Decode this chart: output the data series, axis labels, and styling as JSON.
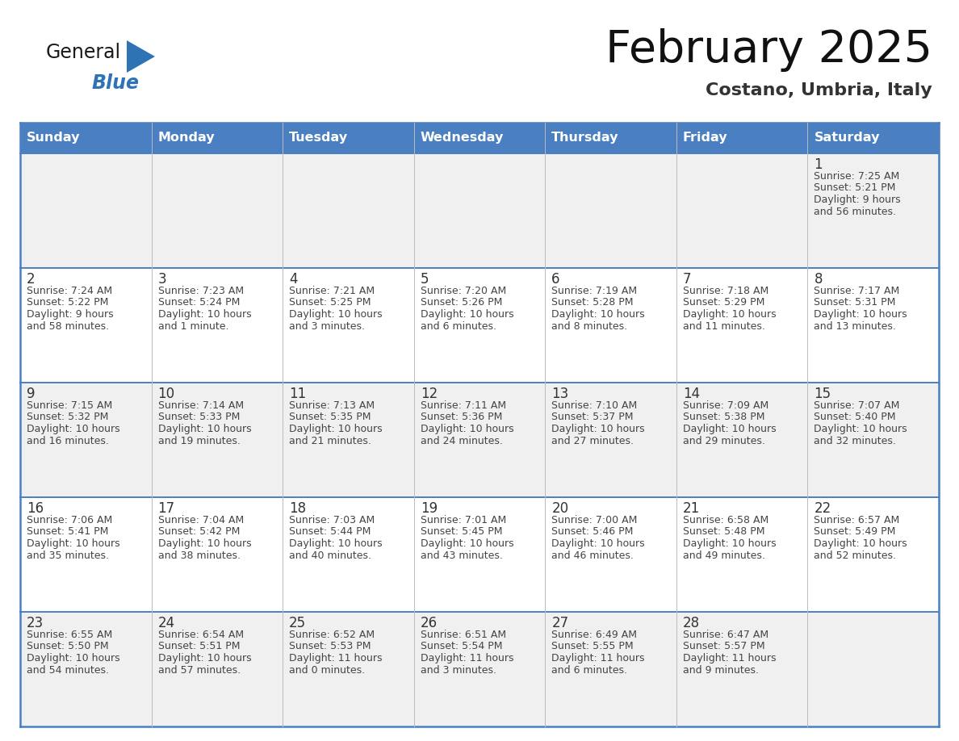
{
  "title": "February 2025",
  "subtitle": "Costano, Umbria, Italy",
  "days_of_week": [
    "Sunday",
    "Monday",
    "Tuesday",
    "Wednesday",
    "Thursday",
    "Friday",
    "Saturday"
  ],
  "header_bg": "#4a7fc1",
  "header_text": "#FFFFFF",
  "row_bg_alt": "#F0F0F0",
  "row_bg_norm": "#FFFFFF",
  "cell_text_color": "#444444",
  "day_number_color": "#333333",
  "border_color": "#4a7fc1",
  "logo_general_color": "#1a1a1a",
  "logo_blue_color": "#2E74B5",
  "calendar_data": [
    [
      null,
      null,
      null,
      null,
      null,
      null,
      {
        "day": "1",
        "sunrise": "7:25 AM",
        "sunset": "5:21 PM",
        "daylight_l1": "9 hours",
        "daylight_l2": "and 56 minutes."
      }
    ],
    [
      {
        "day": "2",
        "sunrise": "7:24 AM",
        "sunset": "5:22 PM",
        "daylight_l1": "9 hours",
        "daylight_l2": "and 58 minutes."
      },
      {
        "day": "3",
        "sunrise": "7:23 AM",
        "sunset": "5:24 PM",
        "daylight_l1": "10 hours",
        "daylight_l2": "and 1 minute."
      },
      {
        "day": "4",
        "sunrise": "7:21 AM",
        "sunset": "5:25 PM",
        "daylight_l1": "10 hours",
        "daylight_l2": "and 3 minutes."
      },
      {
        "day": "5",
        "sunrise": "7:20 AM",
        "sunset": "5:26 PM",
        "daylight_l1": "10 hours",
        "daylight_l2": "and 6 minutes."
      },
      {
        "day": "6",
        "sunrise": "7:19 AM",
        "sunset": "5:28 PM",
        "daylight_l1": "10 hours",
        "daylight_l2": "and 8 minutes."
      },
      {
        "day": "7",
        "sunrise": "7:18 AM",
        "sunset": "5:29 PM",
        "daylight_l1": "10 hours",
        "daylight_l2": "and 11 minutes."
      },
      {
        "day": "8",
        "sunrise": "7:17 AM",
        "sunset": "5:31 PM",
        "daylight_l1": "10 hours",
        "daylight_l2": "and 13 minutes."
      }
    ],
    [
      {
        "day": "9",
        "sunrise": "7:15 AM",
        "sunset": "5:32 PM",
        "daylight_l1": "10 hours",
        "daylight_l2": "and 16 minutes."
      },
      {
        "day": "10",
        "sunrise": "7:14 AM",
        "sunset": "5:33 PM",
        "daylight_l1": "10 hours",
        "daylight_l2": "and 19 minutes."
      },
      {
        "day": "11",
        "sunrise": "7:13 AM",
        "sunset": "5:35 PM",
        "daylight_l1": "10 hours",
        "daylight_l2": "and 21 minutes."
      },
      {
        "day": "12",
        "sunrise": "7:11 AM",
        "sunset": "5:36 PM",
        "daylight_l1": "10 hours",
        "daylight_l2": "and 24 minutes."
      },
      {
        "day": "13",
        "sunrise": "7:10 AM",
        "sunset": "5:37 PM",
        "daylight_l1": "10 hours",
        "daylight_l2": "and 27 minutes."
      },
      {
        "day": "14",
        "sunrise": "7:09 AM",
        "sunset": "5:38 PM",
        "daylight_l1": "10 hours",
        "daylight_l2": "and 29 minutes."
      },
      {
        "day": "15",
        "sunrise": "7:07 AM",
        "sunset": "5:40 PM",
        "daylight_l1": "10 hours",
        "daylight_l2": "and 32 minutes."
      }
    ],
    [
      {
        "day": "16",
        "sunrise": "7:06 AM",
        "sunset": "5:41 PM",
        "daylight_l1": "10 hours",
        "daylight_l2": "and 35 minutes."
      },
      {
        "day": "17",
        "sunrise": "7:04 AM",
        "sunset": "5:42 PM",
        "daylight_l1": "10 hours",
        "daylight_l2": "and 38 minutes."
      },
      {
        "day": "18",
        "sunrise": "7:03 AM",
        "sunset": "5:44 PM",
        "daylight_l1": "10 hours",
        "daylight_l2": "and 40 minutes."
      },
      {
        "day": "19",
        "sunrise": "7:01 AM",
        "sunset": "5:45 PM",
        "daylight_l1": "10 hours",
        "daylight_l2": "and 43 minutes."
      },
      {
        "day": "20",
        "sunrise": "7:00 AM",
        "sunset": "5:46 PM",
        "daylight_l1": "10 hours",
        "daylight_l2": "and 46 minutes."
      },
      {
        "day": "21",
        "sunrise": "6:58 AM",
        "sunset": "5:48 PM",
        "daylight_l1": "10 hours",
        "daylight_l2": "and 49 minutes."
      },
      {
        "day": "22",
        "sunrise": "6:57 AM",
        "sunset": "5:49 PM",
        "daylight_l1": "10 hours",
        "daylight_l2": "and 52 minutes."
      }
    ],
    [
      {
        "day": "23",
        "sunrise": "6:55 AM",
        "sunset": "5:50 PM",
        "daylight_l1": "10 hours",
        "daylight_l2": "and 54 minutes."
      },
      {
        "day": "24",
        "sunrise": "6:54 AM",
        "sunset": "5:51 PM",
        "daylight_l1": "10 hours",
        "daylight_l2": "and 57 minutes."
      },
      {
        "day": "25",
        "sunrise": "6:52 AM",
        "sunset": "5:53 PM",
        "daylight_l1": "11 hours",
        "daylight_l2": "and 0 minutes."
      },
      {
        "day": "26",
        "sunrise": "6:51 AM",
        "sunset": "5:54 PM",
        "daylight_l1": "11 hours",
        "daylight_l2": "and 3 minutes."
      },
      {
        "day": "27",
        "sunrise": "6:49 AM",
        "sunset": "5:55 PM",
        "daylight_l1": "11 hours",
        "daylight_l2": "and 6 minutes."
      },
      {
        "day": "28",
        "sunrise": "6:47 AM",
        "sunset": "5:57 PM",
        "daylight_l1": "11 hours",
        "daylight_l2": "and 9 minutes."
      },
      null
    ]
  ]
}
